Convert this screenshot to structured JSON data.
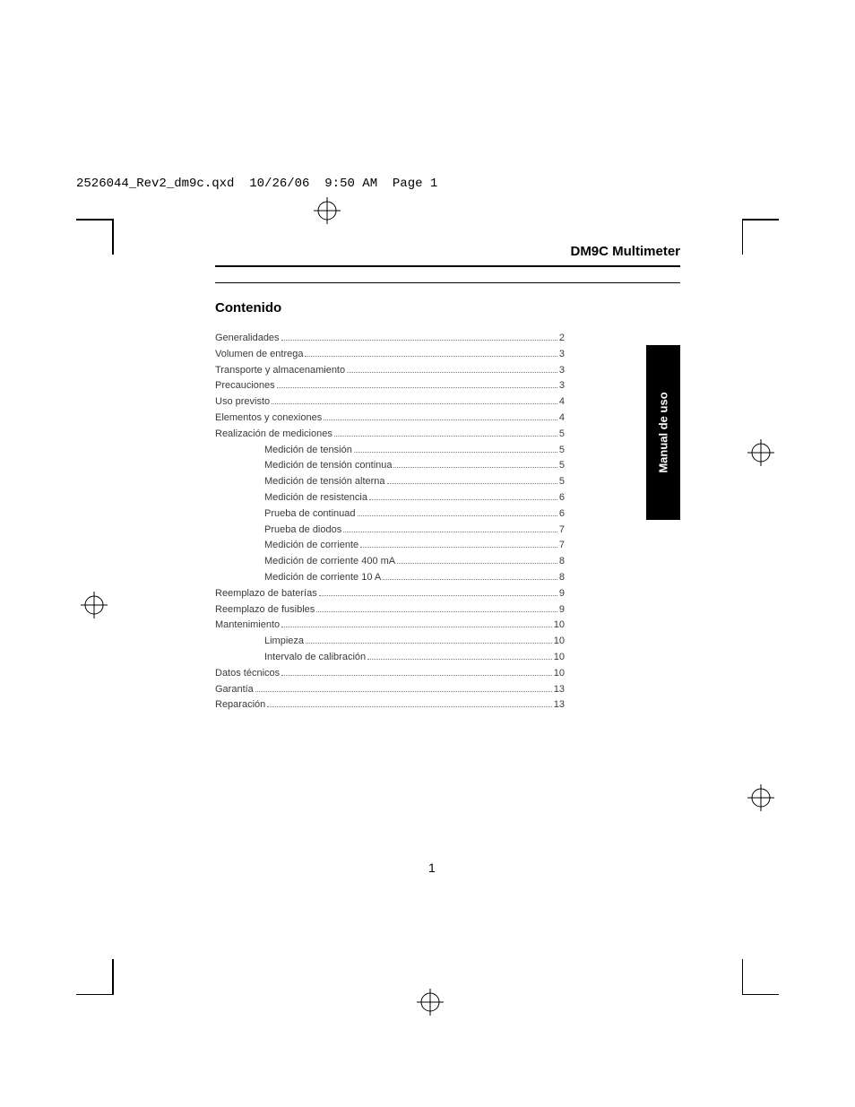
{
  "header": {
    "filename": "2526044_Rev2_dm9c.qxd",
    "date": "10/26/06",
    "time": "9:50 AM",
    "page_label": "Page 1"
  },
  "product_title": "DM9C Multimeter",
  "section_title": "Contenido",
  "side_tab": "Manual de uso",
  "page_number": "1",
  "toc": [
    {
      "label": "Generalidades",
      "page": "2",
      "indent": 0
    },
    {
      "label": "Volumen de entrega",
      "page": "3",
      "indent": 0
    },
    {
      "label": "Transporte y almacenamiento",
      "page": "3",
      "indent": 0
    },
    {
      "label": "Precauciones",
      "page": "3",
      "indent": 0
    },
    {
      "label": "Uso previsto",
      "page": "4",
      "indent": 0
    },
    {
      "label": "Elementos y conexiones",
      "page": "4",
      "indent": 0
    },
    {
      "label": "Realización de mediciones",
      "page": "5",
      "indent": 0
    },
    {
      "label": "Medición de tensión",
      "page": "5",
      "indent": 1
    },
    {
      "label": "Medición de tensión continua",
      "page": "5",
      "indent": 1
    },
    {
      "label": "Medición de tensión alterna",
      "page": "5",
      "indent": 1
    },
    {
      "label": "Medición de resistencia",
      "page": "6",
      "indent": 1
    },
    {
      "label": "Prueba de continuad",
      "page": "6",
      "indent": 1
    },
    {
      "label": "Prueba de diodos",
      "page": "7",
      "indent": 1
    },
    {
      "label": "Medición de corriente",
      "page": "7",
      "indent": 1
    },
    {
      "label": "Medición de corriente 400 mA",
      "page": "8",
      "indent": 1
    },
    {
      "label": "Medición de corriente 10 A",
      "page": "8",
      "indent": 1
    },
    {
      "label": "Reemplazo de baterías",
      "page": "9",
      "indent": 0
    },
    {
      "label": "Reemplazo de fusibles",
      "page": "9",
      "indent": 0
    },
    {
      "label": "Mantenimiento",
      "page": "10",
      "indent": 0
    },
    {
      "label": "Limpieza",
      "page": "10",
      "indent": 1
    },
    {
      "label": "Intervalo de calibración",
      "page": "10",
      "indent": 1
    },
    {
      "label": "Datos técnicos",
      "page": "10",
      "indent": 0
    },
    {
      "label": "Garantía",
      "page": "13",
      "indent": 0
    },
    {
      "label": "Reparación",
      "page": "13",
      "indent": 0
    }
  ]
}
